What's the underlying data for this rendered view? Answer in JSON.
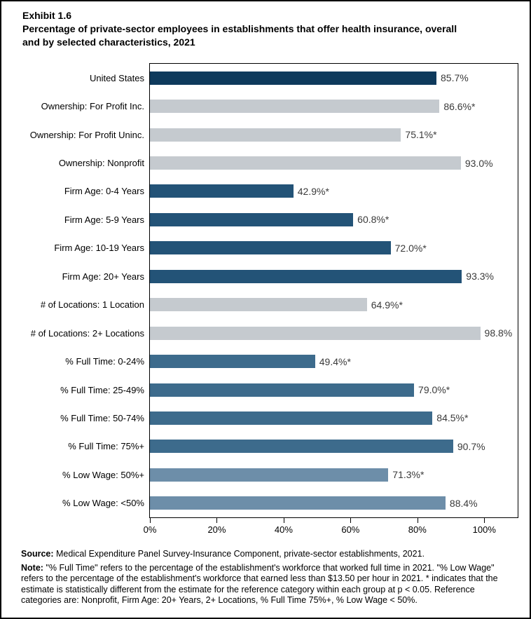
{
  "header": {
    "exhibit_label": "Exhibit 1.6",
    "title_line1": "Percentage of private-sector employees in establishments that offer health insurance, overall",
    "title_line2": "and by selected characteristics, 2021"
  },
  "chart_data": {
    "type": "bar",
    "orientation": "horizontal",
    "title": "Percentage of private-sector employees in establishments that offer health insurance, overall and by selected characteristics, 2021",
    "xlabel": "",
    "ylabel": "",
    "grid": false,
    "legend": false,
    "axis": {
      "min": 0,
      "max": 110,
      "ticks": [
        {
          "value": 0,
          "label": "0%"
        },
        {
          "value": 20,
          "label": "20%"
        },
        {
          "value": 40,
          "label": "40%"
        },
        {
          "value": 60,
          "label": "60%"
        },
        {
          "value": 80,
          "label": "80%"
        },
        {
          "value": 100,
          "label": "100%"
        }
      ]
    },
    "colors": {
      "united_states": "#0E3A5C",
      "ownership": "#C5CACF",
      "firm_age": "#235377",
      "locations": "#C5CACF",
      "full_time": "#3D6B8C",
      "low_wage": "#6D8EA9"
    },
    "bars": [
      {
        "label": "United States",
        "value": 85.7,
        "display": "85.7%",
        "group": "united_states"
      },
      {
        "label": "Ownership: For Profit Inc.",
        "value": 86.6,
        "display": "86.6%*",
        "group": "ownership"
      },
      {
        "label": "Ownership: For Profit Uninc.",
        "value": 75.1,
        "display": "75.1%*",
        "group": "ownership"
      },
      {
        "label": "Ownership: Nonprofit",
        "value": 93.0,
        "display": "93.0%",
        "group": "ownership"
      },
      {
        "label": "Firm Age: 0-4 Years",
        "value": 42.9,
        "display": "42.9%*",
        "group": "firm_age"
      },
      {
        "label": "Firm Age: 5-9 Years",
        "value": 60.8,
        "display": "60.8%*",
        "group": "firm_age"
      },
      {
        "label": "Firm Age: 10-19 Years",
        "value": 72.0,
        "display": "72.0%*",
        "group": "firm_age"
      },
      {
        "label": "Firm Age: 20+ Years",
        "value": 93.3,
        "display": "93.3%",
        "group": "firm_age"
      },
      {
        "label": "# of Locations: 1 Location",
        "value": 64.9,
        "display": "64.9%*",
        "group": "locations"
      },
      {
        "label": "# of Locations: 2+ Locations",
        "value": 98.8,
        "display": "98.8%",
        "group": "locations"
      },
      {
        "label": "% Full Time: 0-24%",
        "value": 49.4,
        "display": "49.4%*",
        "group": "full_time"
      },
      {
        "label": "% Full Time: 25-49%",
        "value": 79.0,
        "display": "79.0%*",
        "group": "full_time"
      },
      {
        "label": "% Full Time: 50-74%",
        "value": 84.5,
        "display": "84.5%*",
        "group": "full_time"
      },
      {
        "label": "% Full Time: 75%+",
        "value": 90.7,
        "display": "90.7%",
        "group": "full_time"
      },
      {
        "label": "% Low Wage: 50%+",
        "value": 71.3,
        "display": "71.3%*",
        "group": "low_wage"
      },
      {
        "label": "% Low Wage: <50%",
        "value": 88.4,
        "display": "88.4%",
        "group": "low_wage"
      }
    ]
  },
  "footer": {
    "source_label": "Source:",
    "source_text": " Medical Expenditure Panel Survey-Insurance Component, private-sector establishments, 2021.",
    "note_label": "Note:",
    "note_text": " \"% Full Time\" refers to the percentage of the establishment's workforce that worked full time in 2021. \"% Low Wage\" refers to the percentage of the establishment's workforce that earned less than $13.50 per hour in 2021. * indicates that the estimate is statistically different from the estimate for the reference category within each group at p < 0.05.  Reference categories are: Nonprofit, Firm Age: 20+ Years, 2+ Locations, % Full Time 75%+, % Low Wage < 50%."
  }
}
